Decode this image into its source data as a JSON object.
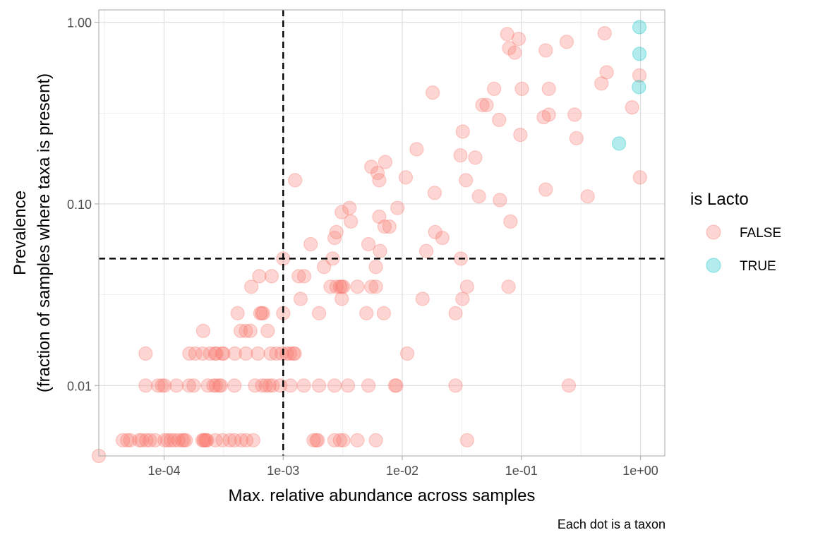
{
  "chart_data": {
    "type": "scatter",
    "title": "",
    "xlabel": "Max. relative abundance across samples",
    "ylabel_line1": "Prevalence",
    "ylabel_line2": "(fraction of samples where taxa is present)",
    "caption": "Each dot is a taxon",
    "x_scale": "log10",
    "y_scale": "log10",
    "xlim": [
      2.83e-05,
      1.6
    ],
    "ylim": [
      0.0041,
      1.17
    ],
    "x_ticks": [
      0.0001,
      0.001,
      0.01,
      0.1,
      1
    ],
    "x_tick_labels": [
      "1e-04",
      "1e-03",
      "1e-02",
      "1e-01",
      "1e+00"
    ],
    "y_ticks": [
      0.01,
      0.1,
      1
    ],
    "y_tick_labels": [
      "0.01",
      "0.10",
      "1.00"
    ],
    "grid": true,
    "reference_lines": {
      "x": 0.001,
      "y": 0.05,
      "style": "dashed",
      "color": "#000000"
    },
    "legend": {
      "title": "is Lacto",
      "placement": "right",
      "entries": [
        {
          "label": "FALSE",
          "color": "#F8766D"
        },
        {
          "label": "TRUE",
          "color": "#00BFC4"
        }
      ]
    },
    "series": [
      {
        "name": "FALSE",
        "color": "#F8766D",
        "points": [
          [
            2.83e-05,
            0.0041
          ],
          [
            4.5e-05,
            0.005
          ],
          [
            4.9e-05,
            0.005
          ],
          [
            5.2e-05,
            0.005
          ],
          [
            6.2e-05,
            0.005
          ],
          [
            6.5e-05,
            0.005
          ],
          [
            7.1e-05,
            0.005
          ],
          [
            7.6e-05,
            0.005
          ],
          [
            8.4e-05,
            0.005
          ],
          [
            0.000101,
            0.005
          ],
          [
            0.000107,
            0.005
          ],
          [
            0.000114,
            0.005
          ],
          [
            0.000122,
            0.005
          ],
          [
            0.000132,
            0.005
          ],
          [
            0.000142,
            0.005
          ],
          [
            0.000147,
            0.005
          ],
          [
            0.000152,
            0.005
          ],
          [
            0.00021,
            0.005
          ],
          [
            0.000215,
            0.005
          ],
          [
            0.00022,
            0.005
          ],
          [
            0.000225,
            0.005
          ],
          [
            0.00023,
            0.005
          ],
          [
            0.00027,
            0.005
          ],
          [
            0.00031,
            0.005
          ],
          [
            0.000355,
            0.005
          ],
          [
            0.00039,
            0.005
          ],
          [
            0.000445,
            0.005
          ],
          [
            0.00049,
            0.005
          ],
          [
            0.00056,
            0.005
          ],
          [
            0.0018,
            0.005
          ],
          [
            0.0019,
            0.005
          ],
          [
            0.00195,
            0.005
          ],
          [
            0.0027,
            0.005
          ],
          [
            0.003,
            0.005
          ],
          [
            0.0032,
            0.005
          ],
          [
            0.0042,
            0.005
          ],
          [
            0.006,
            0.005
          ],
          [
            0.035,
            0.005
          ],
          [
            7e-05,
            0.01
          ],
          [
            8.9e-05,
            0.01
          ],
          [
            9.6e-05,
            0.01
          ],
          [
            0.000101,
            0.01
          ],
          [
            0.000127,
            0.01
          ],
          [
            0.000162,
            0.01
          ],
          [
            0.000177,
            0.01
          ],
          [
            0.000233,
            0.01
          ],
          [
            0.00026,
            0.01
          ],
          [
            0.000272,
            0.01
          ],
          [
            0.000291,
            0.01
          ],
          [
            0.0003,
            0.01
          ],
          [
            0.00039,
            0.01
          ],
          [
            0.00058,
            0.01
          ],
          [
            0.000665,
            0.01
          ],
          [
            0.000715,
            0.01
          ],
          [
            0.000765,
            0.01
          ],
          [
            0.000815,
            0.01
          ],
          [
            0.000945,
            0.01
          ],
          [
            0.00115,
            0.01
          ],
          [
            0.00149,
            0.01
          ],
          [
            0.002,
            0.01
          ],
          [
            0.0027,
            0.01
          ],
          [
            0.0035,
            0.01
          ],
          [
            0.0052,
            0.01
          ],
          [
            0.0087,
            0.01
          ],
          [
            0.0089,
            0.01
          ],
          [
            0.028,
            0.01
          ],
          [
            0.25,
            0.01
          ],
          [
            7e-05,
            0.015
          ],
          [
            0.000163,
            0.015
          ],
          [
            0.000183,
            0.015
          ],
          [
            0.000211,
            0.015
          ],
          [
            0.000243,
            0.015
          ],
          [
            0.000268,
            0.015
          ],
          [
            0.000275,
            0.015
          ],
          [
            0.000308,
            0.015
          ],
          [
            0.000315,
            0.015
          ],
          [
            0.000393,
            0.015
          ],
          [
            0.000486,
            0.015
          ],
          [
            0.000613,
            0.015
          ],
          [
            0.000786,
            0.015
          ],
          [
            0.000875,
            0.015
          ],
          [
            0.000974,
            0.015
          ],
          [
            0.00107,
            0.015
          ],
          [
            0.00114,
            0.015
          ],
          [
            0.00122,
            0.015
          ],
          [
            0.00125,
            0.015
          ],
          [
            0.011,
            0.015
          ],
          [
            0.000213,
            0.02
          ],
          [
            0.000486,
            0.02
          ],
          [
            0.000741,
            0.02
          ],
          [
            0.000414,
            0.025
          ],
          [
            0.000642,
            0.025
          ],
          [
            0.000661,
            0.025
          ],
          [
            0.00068,
            0.025
          ],
          [
            0.001,
            0.025
          ],
          [
            0.002,
            0.025
          ],
          [
            0.005,
            0.025
          ],
          [
            0.007,
            0.025
          ],
          [
            0.028,
            0.025
          ],
          [
            0.00044,
            0.02
          ],
          [
            0.00053,
            0.02
          ],
          [
            0.00054,
            0.035
          ],
          [
            0.00063,
            0.04
          ],
          [
            0.0008,
            0.04
          ],
          [
            0.00135,
            0.04
          ],
          [
            0.0015,
            0.04
          ],
          [
            0.0025,
            0.035
          ],
          [
            0.0028,
            0.035
          ],
          [
            0.003,
            0.035
          ],
          [
            0.0031,
            0.035
          ],
          [
            0.0032,
            0.035
          ],
          [
            0.0042,
            0.035
          ],
          [
            0.0055,
            0.035
          ],
          [
            0.006,
            0.035
          ],
          [
            0.0148,
            0.03
          ],
          [
            0.032,
            0.03
          ],
          [
            0.035,
            0.035
          ],
          [
            0.078,
            0.035
          ],
          [
            0.001,
            0.05
          ],
          [
            0.0014,
            0.03
          ],
          [
            0.0022,
            0.045
          ],
          [
            0.0026,
            0.05
          ],
          [
            0.0052,
            0.06
          ],
          [
            0.006,
            0.045
          ],
          [
            0.0065,
            0.055
          ],
          [
            0.0031,
            0.03
          ],
          [
            0.0159,
            0.055
          ],
          [
            0.031,
            0.05
          ],
          [
            0.0017,
            0.06
          ],
          [
            0.0027,
            0.065
          ],
          [
            0.0028,
            0.07
          ],
          [
            0.0031,
            0.09
          ],
          [
            0.0036,
            0.095
          ],
          [
            0.0037,
            0.08
          ],
          [
            0.0064,
            0.085
          ],
          [
            0.0071,
            0.075
          ],
          [
            0.0078,
            0.075
          ],
          [
            0.0091,
            0.095
          ],
          [
            0.0189,
            0.07
          ],
          [
            0.0217,
            0.065
          ],
          [
            0.044,
            0.11
          ],
          [
            0.081,
            0.08
          ],
          [
            0.00126,
            0.135
          ],
          [
            0.0055,
            0.16
          ],
          [
            0.0062,
            0.148
          ],
          [
            0.0064,
            0.135
          ],
          [
            0.0072,
            0.17
          ],
          [
            0.0107,
            0.14
          ],
          [
            0.0132,
            0.2
          ],
          [
            0.0187,
            0.115
          ],
          [
            0.0308,
            0.185
          ],
          [
            0.0322,
            0.25
          ],
          [
            0.0342,
            0.135
          ],
          [
            0.041,
            0.18
          ],
          [
            0.066,
            0.105
          ],
          [
            0.16,
            0.12
          ],
          [
            0.36,
            0.11
          ],
          [
            0.018,
            0.41
          ],
          [
            0.047,
            0.35
          ],
          [
            0.051,
            0.35
          ],
          [
            0.059,
            0.43
          ],
          [
            0.065,
            0.29
          ],
          [
            0.076,
            0.86
          ],
          [
            0.079,
            0.72
          ],
          [
            0.088,
            0.68
          ],
          [
            0.095,
            0.81
          ],
          [
            0.098,
            0.24
          ],
          [
            0.101,
            0.43
          ],
          [
            0.154,
            0.3
          ],
          [
            0.16,
            0.7
          ],
          [
            0.17,
            0.43
          ],
          [
            0.17,
            0.31
          ],
          [
            0.28,
            0.31
          ],
          [
            0.29,
            0.23
          ],
          [
            0.24,
            0.78
          ],
          [
            0.47,
            0.46
          ],
          [
            0.5,
            0.87
          ],
          [
            0.52,
            0.53
          ],
          [
            0.85,
            0.34
          ],
          [
            0.98,
            0.51
          ],
          [
            0.99,
            0.14
          ]
        ]
      },
      {
        "name": "TRUE",
        "color": "#00BFC4",
        "points": [
          [
            0.98,
            0.94
          ],
          [
            0.98,
            0.67
          ],
          [
            0.97,
            0.44
          ],
          [
            0.66,
            0.215
          ]
        ]
      }
    ]
  }
}
